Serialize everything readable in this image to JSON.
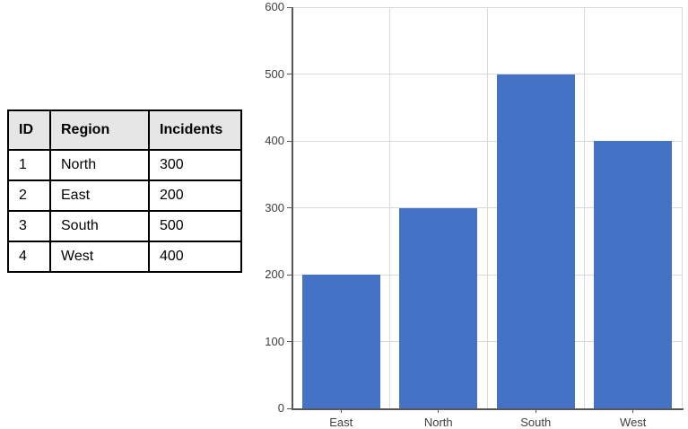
{
  "page": {
    "background_color": "#FFFFFF"
  },
  "table": {
    "headers": [
      "ID",
      "Region",
      "Incidents"
    ],
    "rows": [
      {
        "id": "1",
        "region": "North",
        "incidents": "300"
      },
      {
        "id": "2",
        "region": "East",
        "incidents": "200"
      },
      {
        "id": "3",
        "region": "South",
        "incidents": "500"
      },
      {
        "id": "4",
        "region": "West",
        "incidents": "400"
      }
    ],
    "header_bg": "#E7E6E6",
    "border_color": "#000000",
    "text_color": "#000000"
  },
  "chart_data": {
    "type": "bar",
    "categories": [
      "East",
      "North",
      "South",
      "West"
    ],
    "values": [
      200,
      300,
      500,
      400
    ],
    "title": "",
    "xlabel": "",
    "ylabel": "",
    "ylim": [
      0,
      600
    ],
    "yticks": [
      0,
      100,
      200,
      300,
      400,
      500,
      600
    ],
    "grid": "horizontal and vertical gridlines on",
    "legend": "none",
    "bar_color": "#4472C4",
    "gridline_color": "#D9D9D9",
    "axis_color": "#595959",
    "label_color": "#404040"
  }
}
